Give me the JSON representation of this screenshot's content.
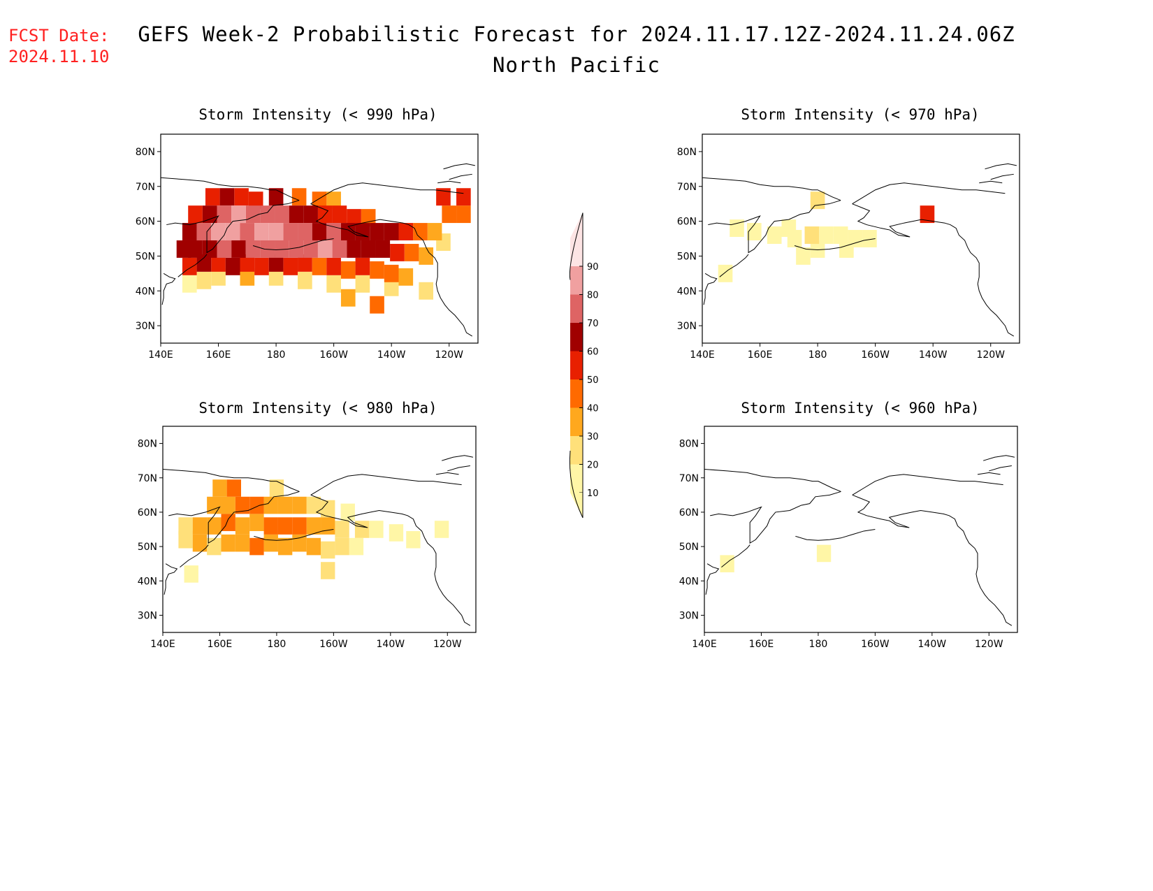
{
  "header": {
    "fcst_label": "FCST Date:",
    "fcst_date": "2024.11.10",
    "title": "GEFS Week-2 Probabilistic Forecast for 2024.11.17.12Z-2024.11.24.06Z",
    "region": "North Pacific"
  },
  "axes": {
    "lat_labels": [
      "80N",
      "70N",
      "60N",
      "50N",
      "40N",
      "30N"
    ],
    "lat_values": [
      80,
      70,
      60,
      50,
      40,
      30
    ],
    "lon_labels": [
      "140E",
      "160E",
      "180",
      "160W",
      "140W",
      "120W"
    ],
    "lon_values": [
      140,
      160,
      180,
      200,
      220,
      240
    ],
    "lon_range": [
      140,
      250
    ],
    "lat_range": [
      25,
      85
    ]
  },
  "colorbar": {
    "levels": [
      "10",
      "20",
      "30",
      "40",
      "50",
      "60",
      "70",
      "80",
      "90"
    ],
    "colors": [
      "#fff6a6",
      "#ffe07a",
      "#ffa81e",
      "#ff6a00",
      "#e82000",
      "#a00000",
      "#de6464",
      "#f0a0a0",
      "#fde4e4"
    ]
  },
  "panels": [
    {
      "id": "p990",
      "title": "Storm Intensity (< 990 hPa)"
    },
    {
      "id": "p970",
      "title": "Storm Intensity (< 970 hPa)"
    },
    {
      "id": "p980",
      "title": "Storm Intensity (< 980 hPa)"
    },
    {
      "id": "p960",
      "title": "Storm Intensity (< 960 hPa)"
    }
  ],
  "chart_data": {
    "type": "heatmap",
    "units": "probability (%)",
    "grid": "[lon, lat, probability]",
    "fields": {
      "p990": [
        [
          150,
          42,
          15
        ],
        [
          155,
          43,
          25
        ],
        [
          160,
          44,
          25
        ],
        [
          170,
          44,
          30
        ],
        [
          180,
          44,
          25
        ],
        [
          190,
          43,
          20
        ],
        [
          200,
          42,
          20
        ],
        [
          210,
          42,
          20
        ],
        [
          220,
          41,
          25
        ],
        [
          150,
          47,
          55
        ],
        [
          155,
          48,
          60
        ],
        [
          160,
          48,
          55
        ],
        [
          165,
          47,
          60
        ],
        [
          170,
          48,
          50
        ],
        [
          175,
          47,
          55
        ],
        [
          180,
          48,
          60
        ],
        [
          185,
          47,
          50
        ],
        [
          190,
          48,
          55
        ],
        [
          195,
          47,
          45
        ],
        [
          200,
          47,
          55
        ],
        [
          205,
          46,
          45
        ],
        [
          210,
          47,
          50
        ],
        [
          215,
          46,
          45
        ],
        [
          220,
          45,
          40
        ],
        [
          225,
          44,
          35
        ],
        [
          148,
          52,
          60
        ],
        [
          152,
          52,
          65
        ],
        [
          157,
          52,
          65
        ],
        [
          162,
          52,
          70
        ],
        [
          167,
          52,
          65
        ],
        [
          172,
          52,
          70
        ],
        [
          177,
          52,
          75
        ],
        [
          182,
          52,
          70
        ],
        [
          187,
          52,
          75
        ],
        [
          192,
          52,
          70
        ],
        [
          197,
          52,
          80
        ],
        [
          202,
          52,
          70
        ],
        [
          207,
          52,
          65
        ],
        [
          212,
          52,
          65
        ],
        [
          217,
          52,
          60
        ],
        [
          222,
          51,
          55
        ],
        [
          227,
          51,
          45
        ],
        [
          232,
          50,
          30
        ],
        [
          150,
          57,
          65
        ],
        [
          155,
          57,
          75
        ],
        [
          160,
          57,
          80
        ],
        [
          165,
          57,
          80
        ],
        [
          170,
          57,
          75
        ],
        [
          175,
          57,
          80
        ],
        [
          180,
          57,
          80
        ],
        [
          185,
          57,
          75
        ],
        [
          190,
          57,
          70
        ],
        [
          195,
          57,
          65
        ],
        [
          200,
          57,
          70
        ],
        [
          205,
          57,
          65
        ],
        [
          210,
          57,
          65
        ],
        [
          215,
          57,
          60
        ],
        [
          220,
          57,
          60
        ],
        [
          225,
          57,
          55
        ],
        [
          230,
          57,
          45
        ],
        [
          235,
          57,
          35
        ],
        [
          152,
          62,
          55
        ],
        [
          157,
          62,
          65
        ],
        [
          162,
          62,
          75
        ],
        [
          167,
          62,
          80
        ],
        [
          172,
          62,
          70
        ],
        [
          177,
          62,
          70
        ],
        [
          182,
          62,
          75
        ],
        [
          187,
          62,
          65
        ],
        [
          192,
          62,
          60
        ],
        [
          197,
          62,
          55
        ],
        [
          202,
          62,
          50
        ],
        [
          207,
          61,
          50
        ],
        [
          212,
          61,
          45
        ],
        [
          240,
          62,
          40
        ],
        [
          245,
          62,
          45
        ],
        [
          158,
          67,
          50
        ],
        [
          163,
          67,
          65
        ],
        [
          168,
          67,
          55
        ],
        [
          173,
          66,
          50
        ],
        [
          180,
          67,
          60
        ],
        [
          188,
          67,
          40
        ],
        [
          195,
          66,
          40
        ],
        [
          200,
          66,
          35
        ],
        [
          238,
          67,
          50
        ],
        [
          245,
          67,
          50
        ],
        [
          205,
          38,
          35
        ],
        [
          215,
          36,
          40
        ],
        [
          232,
          40,
          25
        ],
        [
          238,
          54,
          20
        ]
      ],
      "p980": [
        [
          148,
          52,
          25
        ],
        [
          153,
          51,
          30
        ],
        [
          158,
          50,
          25
        ],
        [
          163,
          51,
          35
        ],
        [
          168,
          51,
          35
        ],
        [
          173,
          50,
          40
        ],
        [
          178,
          51,
          30
        ],
        [
          183,
          50,
          35
        ],
        [
          188,
          51,
          30
        ],
        [
          193,
          50,
          30
        ],
        [
          198,
          49,
          25
        ],
        [
          203,
          50,
          20
        ],
        [
          208,
          50,
          15
        ],
        [
          148,
          56,
          25
        ],
        [
          153,
          56,
          30
        ],
        [
          158,
          56,
          35
        ],
        [
          163,
          57,
          40
        ],
        [
          168,
          56,
          35
        ],
        [
          173,
          57,
          35
        ],
        [
          178,
          56,
          40
        ],
        [
          183,
          56,
          45
        ],
        [
          188,
          56,
          40
        ],
        [
          193,
          56,
          35
        ],
        [
          198,
          56,
          30
        ],
        [
          203,
          55,
          25
        ],
        [
          210,
          55,
          20
        ],
        [
          215,
          55,
          15
        ],
        [
          222,
          54,
          15
        ],
        [
          228,
          52,
          15
        ],
        [
          158,
          62,
          30
        ],
        [
          163,
          62,
          35
        ],
        [
          168,
          62,
          40
        ],
        [
          173,
          62,
          40
        ],
        [
          178,
          62,
          35
        ],
        [
          183,
          62,
          35
        ],
        [
          188,
          62,
          30
        ],
        [
          193,
          62,
          25
        ],
        [
          198,
          61,
          20
        ],
        [
          205,
          60,
          15
        ],
        [
          160,
          67,
          30
        ],
        [
          165,
          67,
          40
        ],
        [
          180,
          67,
          25
        ],
        [
          198,
          43,
          20
        ],
        [
          150,
          42,
          15
        ],
        [
          238,
          55,
          15
        ]
      ],
      "p970": [
        [
          152,
          58,
          15
        ],
        [
          158,
          57,
          15
        ],
        [
          165,
          56,
          15
        ],
        [
          172,
          55,
          15
        ],
        [
          178,
          56,
          20
        ],
        [
          183,
          56,
          15
        ],
        [
          188,
          56,
          15
        ],
        [
          193,
          55,
          15
        ],
        [
          198,
          55,
          15
        ],
        [
          190,
          52,
          15
        ],
        [
          180,
          52,
          15
        ],
        [
          175,
          50,
          15
        ],
        [
          170,
          58,
          15
        ],
        [
          180,
          66,
          20
        ],
        [
          218,
          62,
          50
        ],
        [
          148,
          45,
          15
        ]
      ],
      "p960": [
        [
          148,
          45,
          15
        ],
        [
          182,
          48,
          15
        ]
      ]
    }
  }
}
